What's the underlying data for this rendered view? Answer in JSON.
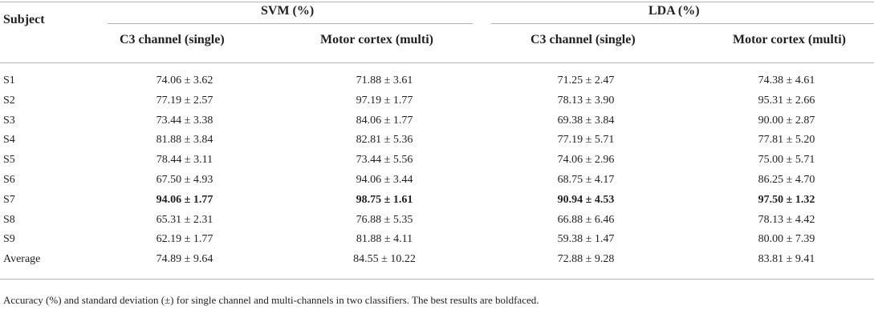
{
  "table": {
    "subject_header": "Subject",
    "groups": [
      {
        "label": "SVM (%)",
        "columns": [
          "C3 channel (single)",
          "Motor cortex (multi)"
        ]
      },
      {
        "label": "LDA (%)",
        "columns": [
          "C3 channel (single)",
          "Motor cortex (multi)"
        ]
      }
    ],
    "rows": [
      {
        "subject": "S1",
        "values": [
          "74.06 ± 3.62",
          "71.88 ± 3.61",
          "71.25 ± 2.47",
          "74.38 ± 4.61"
        ],
        "bold": false
      },
      {
        "subject": "S2",
        "values": [
          "77.19 ± 2.57",
          "97.19 ± 1.77",
          "78.13 ± 3.90",
          "95.31 ± 2.66"
        ],
        "bold": false
      },
      {
        "subject": "S3",
        "values": [
          "73.44 ± 3.38",
          "84.06 ± 1.77",
          "69.38 ± 3.84",
          "90.00 ± 2.87"
        ],
        "bold": false
      },
      {
        "subject": "S4",
        "values": [
          "81.88 ± 3.84",
          "82.81 ± 5.36",
          "77.19 ± 5.71",
          "77.81 ± 5.20"
        ],
        "bold": false
      },
      {
        "subject": "S5",
        "values": [
          "78.44 ± 3.11",
          "73.44 ± 5.56",
          "74.06 ± 2.96",
          "75.00 ± 5.71"
        ],
        "bold": false
      },
      {
        "subject": "S6",
        "values": [
          "67.50 ± 4.93",
          "94.06 ± 3.44",
          "68.75 ± 4.17",
          "86.25 ± 4.70"
        ],
        "bold": false
      },
      {
        "subject": "S7",
        "values": [
          "94.06 ± 1.77",
          "98.75 ± 1.61",
          "90.94 ± 4.53",
          "97.50 ± 1.32"
        ],
        "bold": true
      },
      {
        "subject": "S8",
        "values": [
          "65.31 ± 2.31",
          "76.88 ± 5.35",
          "66.88 ± 6.46",
          "78.13 ± 4.42"
        ],
        "bold": false
      },
      {
        "subject": "S9",
        "values": [
          "62.19 ± 1.77",
          "81.88 ± 4.11",
          "59.38 ± 1.47",
          "80.00 ± 7.39"
        ],
        "bold": false
      },
      {
        "subject": "Average",
        "values": [
          "74.89 ± 9.64",
          "84.55 ± 10.22",
          "72.88 ± 9.28",
          "83.81 ± 9.41"
        ],
        "bold": false
      }
    ],
    "caption": "Accuracy (%) and standard deviation (±) for single channel and multi-channels in two classifiers. The best results are boldfaced."
  }
}
